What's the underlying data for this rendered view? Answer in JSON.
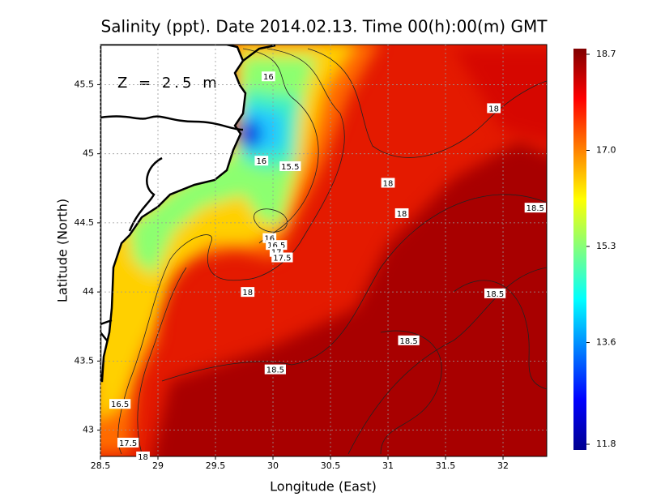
{
  "chart_data": {
    "type": "contour",
    "title": "Salinity (ppt). Date 2014.02.13. Time 00(h):00(m) GMT",
    "annotation": "Z = 2.5 m",
    "xlabel": "Longitude (East)",
    "ylabel": "Latitude (North)",
    "xlim": [
      28.5,
      32.38
    ],
    "ylim": [
      42.81,
      45.79
    ],
    "xticks": [
      28.5,
      29,
      29.5,
      30,
      30.5,
      31,
      31.5,
      32
    ],
    "yticks": [
      43,
      43.5,
      44,
      44.5,
      45,
      45.5
    ],
    "grid": true,
    "colorbar": {
      "clim": [
        11.7,
        18.8
      ],
      "ticks": [
        18.7,
        {
          "value": 17,
          "label": "17.0"
        },
        15.3,
        13.6,
        11.8
      ]
    },
    "contour_labels": [
      {
        "value": 16,
        "x": 29.96,
        "y": 45.56
      },
      {
        "value": 18,
        "x": 31.92,
        "y": 45.33
      },
      {
        "value": 16,
        "x": 29.9,
        "y": 44.95
      },
      {
        "value": 15.5,
        "x": 30.15,
        "y": 44.91
      },
      {
        "value": 18,
        "x": 31.0,
        "y": 44.79
      },
      {
        "value": 18.5,
        "x": 32.28,
        "y": 44.61
      },
      {
        "value": 18,
        "x": 31.12,
        "y": 44.57
      },
      {
        "value": 16,
        "x": 29.97,
        "y": 44.39
      },
      {
        "value": 16.5,
        "x": 30.03,
        "y": 44.34
      },
      {
        "value": 17,
        "x": 30.03,
        "y": 44.29
      },
      {
        "value": 17.5,
        "x": 30.08,
        "y": 44.25
      },
      {
        "value": 18,
        "x": 29.78,
        "y": 44.0
      },
      {
        "value": 18.5,
        "x": 31.93,
        "y": 43.99
      },
      {
        "value": 18.5,
        "x": 31.18,
        "y": 43.65
      },
      {
        "value": 18.5,
        "x": 30.02,
        "y": 43.44
      },
      {
        "value": 16.5,
        "x": 28.67,
        "y": 43.19
      },
      {
        "value": 17.5,
        "x": 28.74,
        "y": 42.91
      },
      {
        "value": 18,
        "x": 28.87,
        "y": 42.81
      }
    ]
  }
}
